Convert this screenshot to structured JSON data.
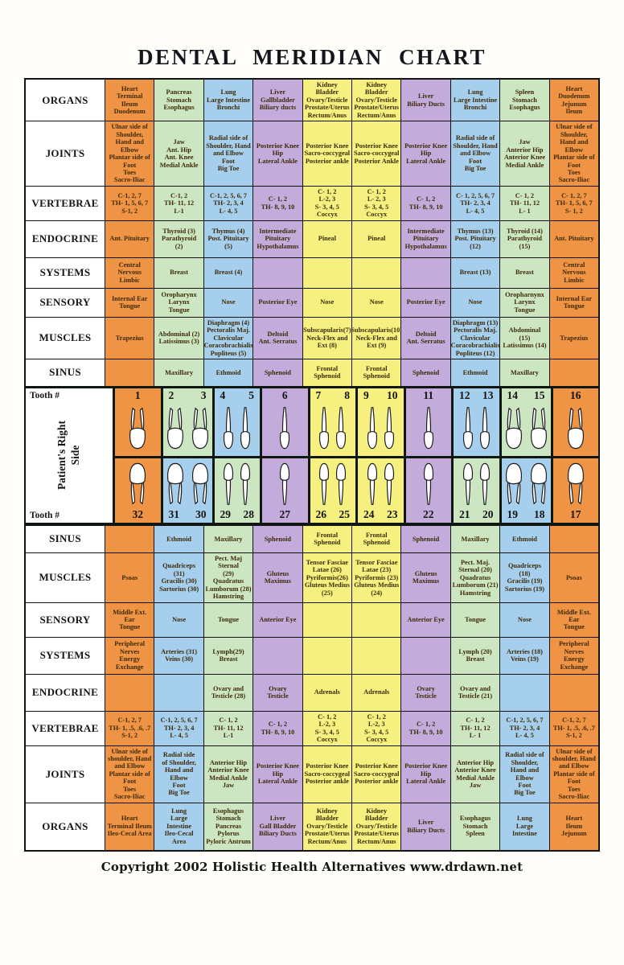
{
  "title": "DENTAL MERIDIAN CHART",
  "copyright": "Copyright 2002 Holistic Health Alternatives  www.drdawn.net",
  "colors": {
    "palette": {
      "orange": "#EF9444",
      "green": "#CCE6C2",
      "blue": "#A5CFEC",
      "purple": "#C3ABDB",
      "yellow": "#F5F07F"
    },
    "top_columns": [
      "orange",
      "green",
      "blue",
      "purple",
      "yellow",
      "yellow",
      "purple",
      "blue",
      "green",
      "orange"
    ],
    "bottom_columns": [
      "orange",
      "blue",
      "green",
      "purple",
      "yellow",
      "yellow",
      "purple",
      "green",
      "blue",
      "orange"
    ]
  },
  "top_rows": [
    {
      "label": "ORGANS",
      "cells": [
        "Heart\nTerminal\nIleum\nDuodenum",
        "Pancreas\nStomach\nEsophagus",
        "Lung\nLarge Intestine\nBronchi",
        "Liver\nGallbladder\nBiliary ducts",
        "Kidney\nBladder\nOvary/Testicle\nProstate/Uterus\nRectum/Anus",
        "Kidney\nBladder\nOvary/Testicle\nProstate/Uterus\nRectum/Anus",
        "Liver\nBiliary Ducts",
        "Lung\nLarge Intestine\nBronchi",
        "Spleen\nStomach\nEsophagus",
        "Heart\nDuodenum\nJejunum\nIleum"
      ]
    },
    {
      "label": "JOINTS",
      "cells": [
        "Ulnar side of\nShoulder,\nHand and\nElbow\nPlantar side of\nFoot\nToes\nSacro-Iliac",
        "Jaw\nAnt. Hip\nAnt. Knee\nMedial Ankle",
        "Radial side of\nShoulder, Hand\nand Elbow\nFoot\nBig Toe",
        "Posterior Knee\nHip\nLateral Ankle",
        "Posterior Knee\nSacro-coccygeal\nPosterior ankle",
        "Posterior Knee\nSacro-coccygeal\nPosterior Ankle",
        "Posterior Knee\nHip\nLateral Ankle",
        "Radial side of\nShoulder, Hand\nand Elbow\nFoot\nBig Toe",
        "Jaw\nAnterior Hip\nAnterior Knee\nMedial Ankle",
        "Ulnar side of\nShoulder,\nHand and\nElbow\nPlantar side of\nFoot\nToes\nSacro-Iliac"
      ]
    },
    {
      "label": "VERTEBRAE",
      "cells": [
        "C-1, 2, 7\nTH- 1, 5, 6, 7\nS-1, 2",
        "C-1, 2\nTH- 11, 12\nL-1",
        "C-1, 2, 5, 6, 7\nTH- 2, 3, 4\nL- 4, 5",
        "C- 1, 2\nTH- 8, 9, 10",
        "C- 1, 2\nL-2, 3\nS- 3, 4, 5\nCoccyx",
        "C- 1, 2\nL- 2, 3\nS- 3, 4, 5\nCoccyx",
        "C- 1, 2\nTH- 8, 9, 10",
        "C- 1, 2, 5, 6, 7\nTH- 2, 3, 4\nL- 4, 5",
        "C- 1, 2\nTH- 11, 12\nL- 1",
        "C- 1, 2, 7\nTH- 1, 5, 6, 7\nS- 1, 2"
      ]
    },
    {
      "label": "ENDOCRINE",
      "cells": [
        "Ant. Pituitary",
        "Thyroid (3)\nParathyroid\n(2)",
        "Thymus (4)\nPost. Pituitary\n(5)",
        "Intermediate\nPituitary\nHypothalamus",
        "Pineal",
        "Pineal",
        "Intermediate\nPituitary\nHypothalamus",
        "Thymus (13)\nPost. Pituitary\n(12)",
        "Thyroid (14)\nParathyroid\n(15)",
        "Ant. Pituitary"
      ]
    },
    {
      "label": "SYSTEMS",
      "cells": [
        "Central\nNervous\nLimbic",
        "Breast",
        "Breast (4)",
        "",
        "",
        "",
        "",
        "Breast (13)",
        "Breast",
        "Central\nNervous\nLimbic"
      ]
    },
    {
      "label": "SENSORY",
      "cells": [
        "Internal Ear\nTongue",
        "Oropharynx\nLarynx\nTongue",
        "Nose",
        "Posterior Eye",
        "Nose",
        "Nose",
        "Posterior Eye",
        "Nose",
        "Oropharnynx\nLarynx\nTongue",
        "Internal Ear\nTongue"
      ]
    },
    {
      "label": "MUSCLES",
      "cells": [
        "Trapezius",
        "Abdominal (2)\nLatissimus (3)",
        "Diaphragm (4)\nPectoralis Maj.\nClavicular\nCoracobrachialis\nPopliteus (5)",
        "Deltoid\nAnt. Serratus",
        "Subscapularis(7)\nNeck-Flex and\nExt (8)",
        "Subscapularis(10)\nNeck-Flex and\nExt (9)",
        "Deltoid\nAnt. Serratus",
        "Diaphragm (13)\nPectoralis Maj.\nClavicular\nCoracobrachialis\nPopliteus (12)",
        "Abdominal\n(15)\nLatissimus (14)",
        "Trapezius"
      ]
    },
    {
      "label": "SINUS",
      "cells": [
        "",
        "Maxillary",
        "Ethmoid",
        "Sphenoid",
        "Frontal\nSphenoid",
        "Frontal\nSphenoid",
        "Sphenoid",
        "Ethmoid",
        "Maxillary",
        ""
      ]
    }
  ],
  "teeth": {
    "label_top": "Tooth #",
    "label_bottom": "Tooth #",
    "side_label": "Patient's Right\nSide",
    "upper": [
      [
        "1"
      ],
      [
        "2",
        "3"
      ],
      [
        "4",
        "5"
      ],
      [
        "6"
      ],
      [
        "7",
        "8"
      ],
      [
        "9",
        "10"
      ],
      [
        "11"
      ],
      [
        "12",
        "13"
      ],
      [
        "14",
        "15"
      ],
      [
        "16"
      ]
    ],
    "lower": [
      [
        "32"
      ],
      [
        "31",
        "30"
      ],
      [
        "29",
        "28"
      ],
      [
        "27"
      ],
      [
        "26",
        "25"
      ],
      [
        "24",
        "23"
      ],
      [
        "22"
      ],
      [
        "21",
        "20"
      ],
      [
        "19",
        "18"
      ],
      [
        "17"
      ]
    ]
  },
  "bottom_rows": [
    {
      "label": "SINUS",
      "cells": [
        "",
        "Ethmoid",
        "Maxillary",
        "Sphenoid",
        "Frontal\nSphenoid",
        "Frontal\nSphenoid",
        "Sphenoid",
        "Maxillary",
        "Ethmoid",
        ""
      ]
    },
    {
      "label": "MUSCLES",
      "cells": [
        "Psoas",
        "Quadriceps\n(31)\nGracilis (30)\nSartorius (30)",
        "Pect. Maj Sternal\n(29)\nQuadratus\nLumborum (28)\nHamstring",
        "Gluteus\nMaximus",
        "Tensor Fasciae\nLatae (26)\nPyriformis(26)\nGluteus Medius\n(25)",
        "Tensor Fasciae\nLatae (23)\nPyriformis (23)\nGluteus Medius\n(24)",
        "Gluteus\nMaximus",
        "Pect. Maj.\nSternal (20)\nQuadratus\nLumborum (21)\nHamstring",
        "Quadriceps\n(18)\nGracilis (19)\nSartorius (19)",
        "Psoas"
      ]
    },
    {
      "label": "SENSORY",
      "cells": [
        "Middle Ext.\nEar\nTongue",
        "Nose",
        "Tongue",
        "Anterior Eye",
        "",
        "",
        "Anterior Eye",
        "Tongue",
        "Nose",
        "Middle Ext.\nEar\nTongue"
      ]
    },
    {
      "label": "SYSTEMS",
      "cells": [
        "Peripheral\nNerves\nEnergy\nExchange",
        "Arteries (31)\nVeins (30)",
        "Lymph(29)\nBreast",
        "",
        "",
        "",
        "",
        "Lymph (20)\nBreast",
        "Arteries (18)\nVeins (19)",
        "Peripheral\nNerves\nEnergy\nExchange"
      ]
    },
    {
      "label": "ENDOCRINE",
      "cells": [
        "",
        "",
        "Ovary and\nTesticle (28)",
        "Ovary\nTesticle",
        "Adrenals",
        "Adrenals",
        "Ovary\nTesticle",
        "Ovary and\nTesticle (21)",
        "",
        ""
      ]
    },
    {
      "label": "VERTEBRAE",
      "cells": [
        "C-1, 2, 7\nTH- 1, .5, .6, .7\nS-1, 2",
        "C-1, 2, 5, 6, 7\nTH- 2, 3, 4\nL- 4, 5",
        "C- 1, 2\nTH- 11, 12\nL-1",
        "C- 1, 2\nTH- 8, 9, 10",
        "C- 1, 2\nL-2, 3\nS- 3, 4, 5\nCoccyx",
        "C- 1, 2\nL-2, 3\nS- 3, 4, 5\nCoccyx",
        "C- 1, 2\nTH- 8, 9, 10",
        "C- 1, 2\nTH- 11, 12\nL- 1",
        "C-1, 2, 5, 6, 7\nTH- 2, 3, 4\nL- 4, 5",
        "C-1, 2, 7\nTH- 1, .5, .6, .7\nS-1, 2"
      ]
    },
    {
      "label": "JOINTS",
      "cells": [
        "Ulnar side of\nshoulder, Hand\nand Elbow\nPlantar side of\nFoot\nToes\nSacro-Iliac",
        "Radial side\nof Shoulder,\nHand and\nElbow\nFoot\nBig Toe",
        "Anterior Hip\nAnterior Knee\nMedial Ankle\nJaw",
        "Posterior Knee\nHip\nLateral Ankle",
        "Posterior Knee\nSacro-coccygeal\nPosterior ankle",
        "Posterior Knee\nSacro-coccygeal\nPosterior ankle",
        "Posterior Knee\nHip\nLateral Ankle",
        "Anterior Hip\nAnterior Knee\nMedial Ankle\nJaw",
        "Radial side of\nShoulder,\nHand and\nElbow\nFoot\nBig Toe",
        "Ulnar side of\nshoulder, Hand\nand Elbow\nPlantar side of\nFoot\nToes\nSacro-Iliac"
      ]
    },
    {
      "label": "ORGANS",
      "cells": [
        "Heart\nTerminal Ileum\nIleo-Cecal Area",
        "Lung\nLarge\nIntestine\nIleo-Cecal\nArea",
        "Esophagus\nStomach\nPancreas\nPylorus\nPyloric Antrum",
        "Liver\nGall Bladder\nBiliary Ducts",
        "Kidney\nBladder\nOvary/Testicle\nProstate/Uterus\nRectum/Anus",
        "Kidney\nBladder\nOvary/Testicle\nProstate/Uterus\nRectum/Anus",
        "Liver\nBiliary Ducts",
        "Esophagus\nStomach\nSpleen",
        "Lung\nLarge\nIntestine",
        "Heart\nIleum\nJejunum"
      ]
    }
  ]
}
